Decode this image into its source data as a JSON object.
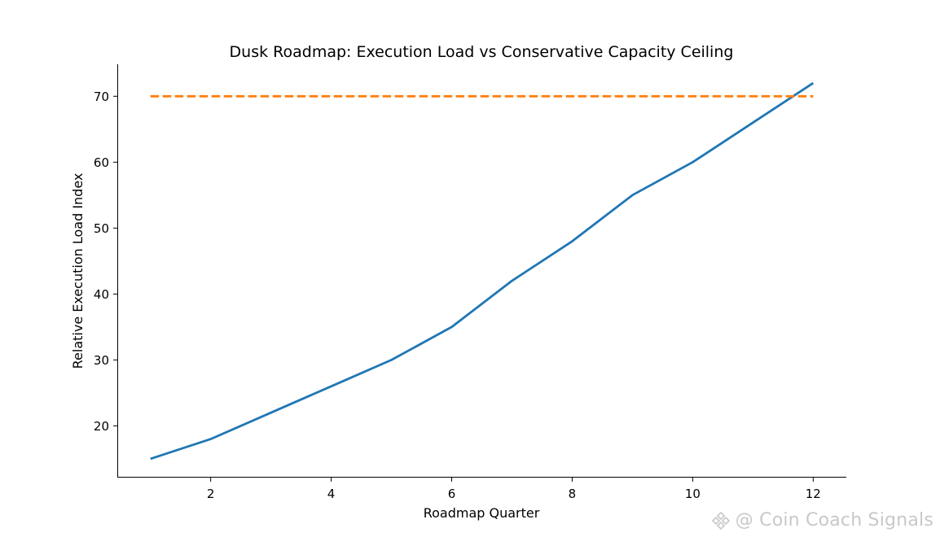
{
  "chart_data": {
    "type": "line",
    "title": "Dusk Roadmap: Execution Load vs Conservative Capacity Ceiling",
    "xlabel": "Roadmap Quarter",
    "ylabel": "Relative Execution Load Index",
    "x": [
      1,
      2,
      3,
      4,
      5,
      6,
      7,
      8,
      9,
      10,
      11,
      12
    ],
    "xlim": [
      0.45,
      12.55
    ],
    "ylim": [
      12.15,
      74.85
    ],
    "xticks": [
      2,
      4,
      6,
      8,
      10,
      12
    ],
    "yticks": [
      20,
      30,
      40,
      50,
      60,
      70
    ],
    "grid": false,
    "legend": "none",
    "series": [
      {
        "values": [
          15,
          18,
          22,
          26,
          30,
          35,
          42,
          48,
          55,
          60,
          66,
          72
        ],
        "color": "#1f77b4",
        "style": "solid"
      },
      {
        "values": [
          70,
          70,
          70,
          70,
          70,
          70,
          70,
          70,
          70,
          70,
          70,
          70
        ],
        "color": "#ff7f0e",
        "style": "dashed"
      }
    ]
  },
  "watermark": {
    "text": "@ Coin Coach Signals",
    "icon": "binance-logo-icon"
  }
}
